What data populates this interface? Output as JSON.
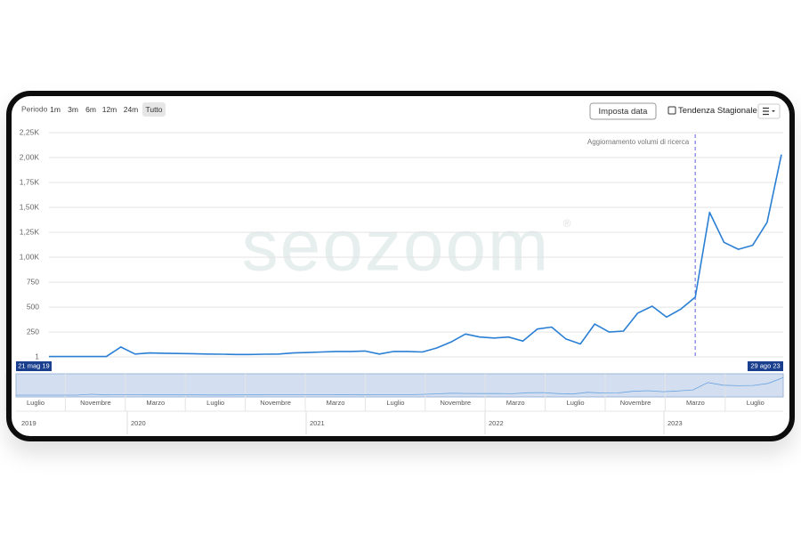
{
  "toolbar": {
    "period_label": "Periodo",
    "periods": [
      "1m",
      "3m",
      "6m",
      "12m",
      "24m",
      "Tutto"
    ],
    "selected_period": "Tutto",
    "set_date_button": "Imposta data",
    "seasonal_trend_label": "Tendenza Stagionale"
  },
  "watermark": {
    "text": "seozoom",
    "mark": "®"
  },
  "chart_data": {
    "type": "line",
    "x": [
      "2019-05",
      "2019-06",
      "2019-07",
      "2019-08",
      "2019-09",
      "2019-10",
      "2019-11",
      "2019-12",
      "2020-01",
      "2020-02",
      "2020-03",
      "2020-04",
      "2020-05",
      "2020-06",
      "2020-07",
      "2020-08",
      "2020-09",
      "2020-10",
      "2020-11",
      "2020-12",
      "2021-01",
      "2021-02",
      "2021-03",
      "2021-04",
      "2021-05",
      "2021-06",
      "2021-07",
      "2021-08",
      "2021-09",
      "2021-10",
      "2021-11",
      "2021-12",
      "2022-01",
      "2022-02",
      "2022-03",
      "2022-04",
      "2022-05",
      "2022-06",
      "2022-07",
      "2022-08",
      "2022-09",
      "2022-10",
      "2022-11",
      "2022-12",
      "2023-01",
      "2023-02",
      "2023-03",
      "2023-04",
      "2023-05",
      "2023-06",
      "2023-07",
      "2023-08"
    ],
    "series": [
      {
        "color": "#2a7fd4",
        "values": [
          5,
          5,
          5,
          5,
          5,
          100,
          30,
          40,
          38,
          35,
          33,
          30,
          28,
          25,
          25,
          28,
          30,
          40,
          45,
          50,
          55,
          55,
          60,
          30,
          55,
          55,
          50,
          90,
          150,
          230,
          200,
          190,
          200,
          160,
          280,
          300,
          180,
          130,
          330,
          250,
          260,
          440,
          510,
          400,
          480,
          600,
          1450,
          1150,
          1080,
          1120,
          1350,
          2030
        ]
      }
    ],
    "ylim": [
      1,
      2250
    ],
    "yticks": [
      1,
      250,
      500,
      750,
      {
        "value": 1000,
        "label": "1,00K"
      },
      {
        "value": 1250,
        "label": "1,25K"
      },
      {
        "value": 1500,
        "label": "1,50K"
      },
      {
        "value": 1750,
        "label": "1,75K"
      },
      {
        "value": 2000,
        "label": "2,00K"
      },
      {
        "value": 2250,
        "label": "2,25K"
      }
    ],
    "grid": true,
    "annotation": {
      "text": "Aggiornamento volumi di ricerca",
      "x": "2023-02"
    }
  },
  "navigator": {
    "start_label": "21 mag 19",
    "end_label": "29 ago 23",
    "month_labels": [
      "Luglio",
      "Novembre",
      "Marzo",
      "Luglio",
      "Novembre",
      "Marzo",
      "Luglio",
      "Novembre",
      "Marzo",
      "Luglio",
      "Novembre",
      "Marzo",
      "Luglio"
    ],
    "year_labels": [
      "2019",
      "2020",
      "2021",
      "2022",
      "2023"
    ]
  }
}
